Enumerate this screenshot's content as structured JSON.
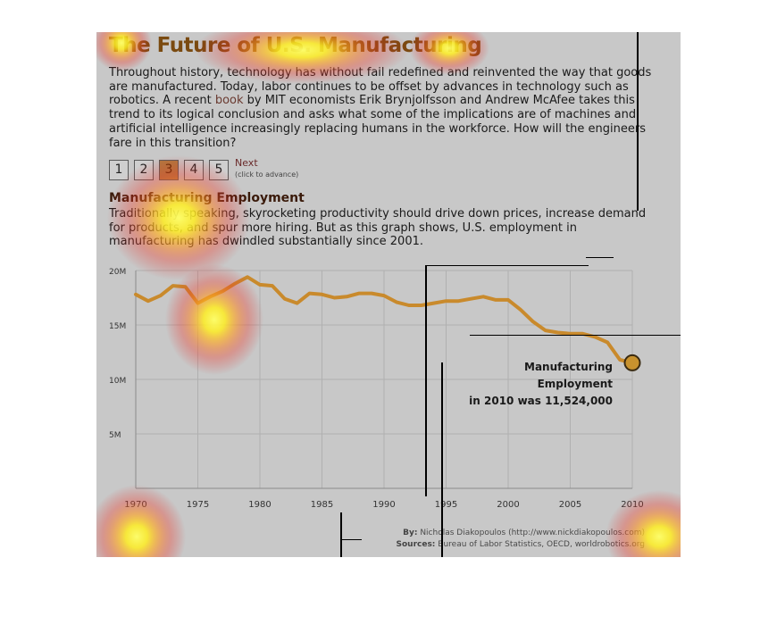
{
  "title": "The Future of U.S. Manufacturing",
  "intro": {
    "before_link": "Throughout history, technology has without fail redefined and reinvented the way that goods are manufactured. Today, labor continues to be offset by advances in technology such as robotics. A recent ",
    "link": "book",
    "after_link": " by MIT economists Erik Brynjolfsson and Andrew McAfee takes this trend to its logical conclusion and asks what some of the implications are of machines and artificial intelligence increasingly replacing humans in the workforce. How will the engineers fare in this transition?"
  },
  "pager": {
    "pages": [
      "1",
      "2",
      "3",
      "4",
      "5"
    ],
    "active_page": "3",
    "next_label": "Next",
    "next_hint": "(click to advance)"
  },
  "section": {
    "title": "Manufacturing Employment",
    "text": "Traditionally speaking, skyrocketing productivity should drive down prices, increase demand for products, and spur more hiring. But as this graph shows, U.S. employment in manufacturing has dwindled substantially since 2001."
  },
  "callout": {
    "line1": "Manufacturing Employment",
    "line2": "in 2010 was 11,524,000"
  },
  "credits": {
    "by_label": "By:",
    "by_text": "Nicholas Diakopoulos (http://www.nickdiakopoulos.com)",
    "sources_label": "Sources:",
    "sources_text": "Bureau of Labor Statistics, OECD, worldrobotics.org"
  },
  "colors": {
    "line": "#c98a2c",
    "marker": "#c8922e",
    "grid": "#b0b0b0",
    "panel": "#c8c8c8"
  },
  "chart_data": {
    "type": "line",
    "x": [
      1970,
      1971,
      1972,
      1973,
      1974,
      1975,
      1976,
      1977,
      1978,
      1979,
      1980,
      1981,
      1982,
      1983,
      1984,
      1985,
      1986,
      1987,
      1988,
      1989,
      1990,
      1991,
      1992,
      1993,
      1994,
      1995,
      1996,
      1997,
      1998,
      1999,
      2000,
      2001,
      2002,
      2003,
      2004,
      2005,
      2006,
      2007,
      2008,
      2009,
      2010
    ],
    "series": [
      {
        "values": [
          17.8,
          17.2,
          17.7,
          18.6,
          18.5,
          17.0,
          17.6,
          18.1,
          18.8,
          19.4,
          18.7,
          18.6,
          17.4,
          17.0,
          17.9,
          17.8,
          17.5,
          17.6,
          17.9,
          17.9,
          17.7,
          17.1,
          16.8,
          16.8,
          17.0,
          17.2,
          17.2,
          17.4,
          17.6,
          17.3,
          17.3,
          16.4,
          15.3,
          14.5,
          14.3,
          14.2,
          14.2,
          13.9,
          13.4,
          11.8,
          11.524
        ]
      }
    ],
    "highlight": {
      "x": 2010,
      "value": 11.524
    },
    "xticks": [
      1970,
      1975,
      1980,
      1985,
      1990,
      1995,
      2000,
      2005,
      2010
    ],
    "yticks": [
      5,
      10,
      15,
      20
    ],
    "ytick_labels": [
      "5M",
      "10M",
      "15M",
      "20M"
    ],
    "ylim": [
      0,
      20
    ],
    "xlim": [
      1970,
      2010
    ],
    "grid": true,
    "title": "",
    "xlabel": "",
    "ylabel": ""
  }
}
